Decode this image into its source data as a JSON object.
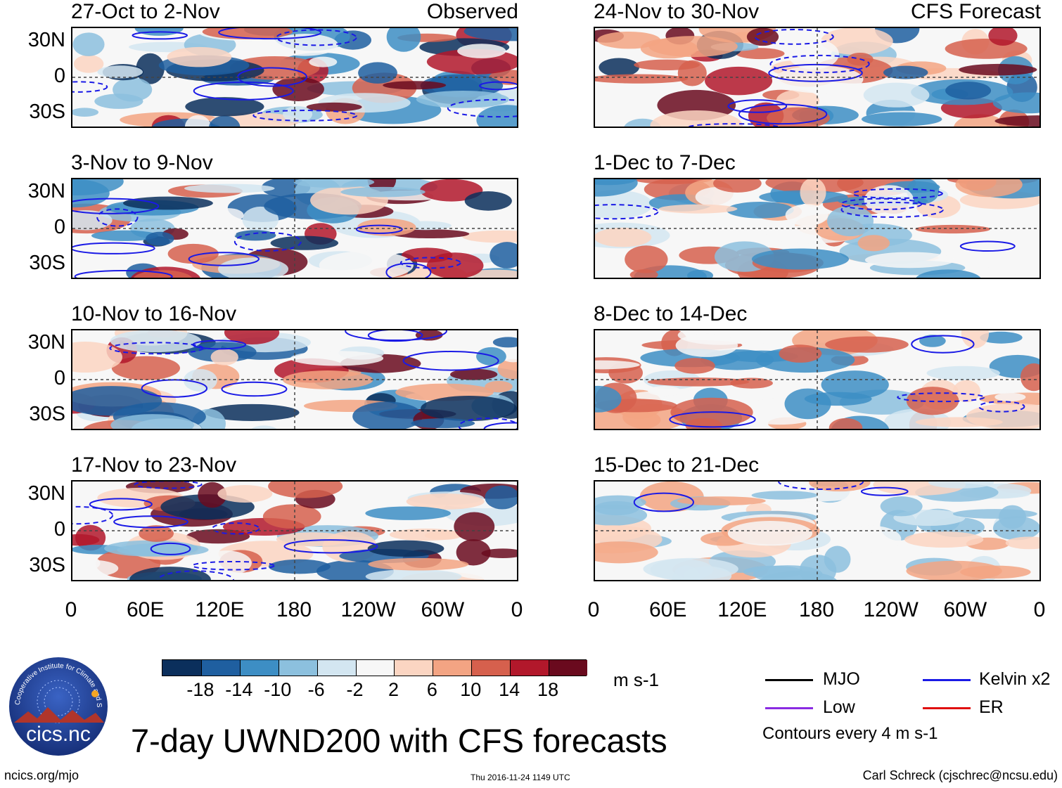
{
  "chart_data": {
    "type": "heatmap",
    "title": "7-day UWND200 with CFS forecasts",
    "variable": "UWND200",
    "units": "m s-1",
    "x_ticks": [
      "0",
      "60E",
      "120E",
      "180",
      "120W",
      "60W",
      "0"
    ],
    "y_ticks": [
      "30N",
      "0",
      "30S"
    ],
    "columns": {
      "left": {
        "label": "Observed"
      },
      "right": {
        "label": "CFS Forecast"
      }
    },
    "panels": [
      {
        "period": "27-Oct to 2-Nov",
        "source": "Observed"
      },
      {
        "period": "3-Nov to 9-Nov",
        "source": "Observed"
      },
      {
        "period": "10-Nov to 16-Nov",
        "source": "Observed"
      },
      {
        "period": "17-Nov to 23-Nov",
        "source": "Observed"
      },
      {
        "period": "24-Nov to 30-Nov",
        "source": "CFS Forecast"
      },
      {
        "period": "1-Dec to 7-Dec",
        "source": "CFS Forecast"
      },
      {
        "period": "8-Dec to 14-Dec",
        "source": "CFS Forecast"
      },
      {
        "period": "15-Dec to 21-Dec",
        "source": "CFS Forecast"
      }
    ],
    "colorbar": {
      "labels": [
        "-18",
        "-14",
        "-10",
        "-6",
        "-2",
        "2",
        "6",
        "10",
        "14",
        "18"
      ],
      "colors": [
        "#0b2f5c",
        "#1f5fa0",
        "#3d8ec4",
        "#8cc0de",
        "#d3e6f1",
        "#f7f7f7",
        "#fbd5c2",
        "#f3a483",
        "#d6604d",
        "#b2182b",
        "#6a0a1e"
      ]
    },
    "legend": [
      {
        "label": "MJO",
        "color": "#000000"
      },
      {
        "label": "Kelvin x2",
        "color": "#1a1ae6"
      },
      {
        "label": "Low",
        "color": "#8a2be2"
      },
      {
        "label": "ER",
        "color": "#e01010"
      }
    ],
    "contour_note": "Contours every 4 m s-1"
  },
  "footer": {
    "logo_text": "cics.nc",
    "logo_ring_text": "Cooperative Institute for Climate and Satellites",
    "site": "ncics.org/mjo",
    "timestamp": "Thu 2016-11-24 1149 UTC",
    "author": "Carl Schreck (cjschrec@ncsu.edu)"
  }
}
